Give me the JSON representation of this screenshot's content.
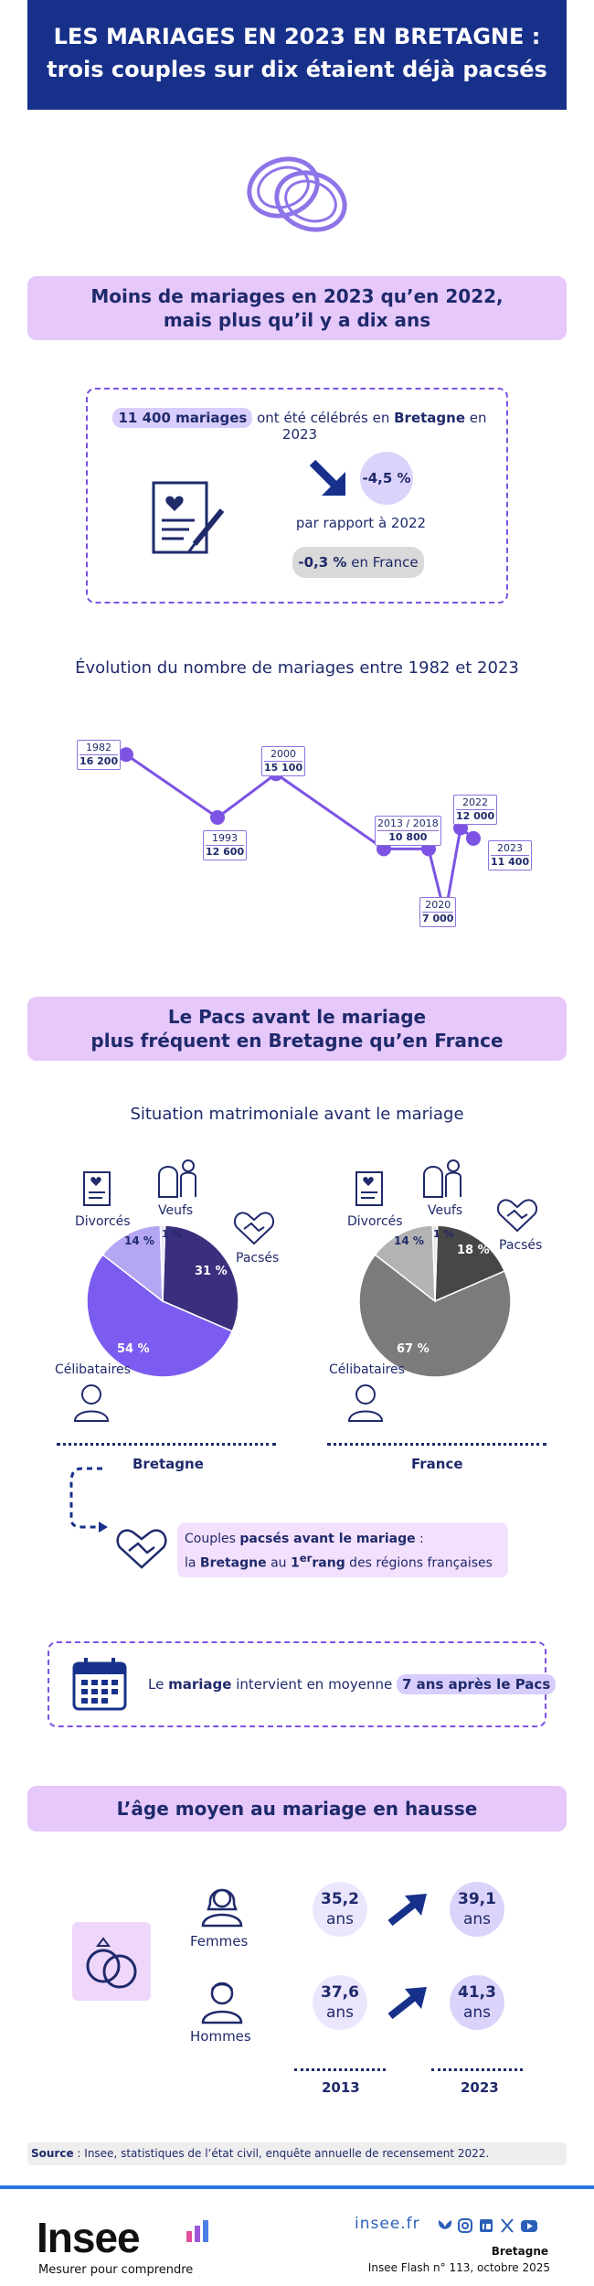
{
  "header": {
    "title_line1": "LES MARIAGES EN 2023 EN BRETAGNE :",
    "title_line2": "trois couples sur dix étaient déjà pacsés"
  },
  "section1": {
    "title_line1": "Moins de mariages en 2023 qu’en 2022,",
    "title_line2": "mais plus qu’il y a dix ans",
    "highlight": "11 400 mariages",
    "text1": " ont été célébrés en ",
    "region": "Bretagne",
    "text2": " en 2023",
    "change": "-4,5 %",
    "change_caption": "par rapport à 2022",
    "france_value": "-0,3 %",
    "france_text": " en France"
  },
  "chart_title": "Évolution du nombre de mariages entre 1982 et 2023",
  "chart_data": {
    "type": "line",
    "title": "Évolution du nombre de mariages entre 1982 et 2023",
    "points": [
      {
        "year_label": "1982",
        "value_label": "16 200",
        "x": 1982,
        "y": 16200
      },
      {
        "year_label": "1993",
        "value_label": "12 600",
        "x": 1993,
        "y": 12600
      },
      {
        "year_label": "2000",
        "value_label": "15 100",
        "x": 2000,
        "y": 15100
      },
      {
        "year_label": "2013 / 2018",
        "value_label": "10 800",
        "x": 2013,
        "y": 10800
      },
      {
        "year_label": "",
        "value_label": "",
        "x": 2018,
        "y": 10800
      },
      {
        "year_label": "2020",
        "value_label": "7 000",
        "x": 2020,
        "y": 7000
      },
      {
        "year_label": "2022",
        "value_label": "12 000",
        "x": 2022,
        "y": 12000
      },
      {
        "year_label": "2023",
        "value_label": "11 400",
        "x": 2023,
        "y": 11400
      }
    ],
    "line_color": "#7c53e3"
  },
  "section2": {
    "title_line1": "Le Pacs avant le mariage",
    "title_line2": "plus fréquent en Bretagne qu’en France",
    "subtitle": "Situation matrimoniale avant le mariage",
    "labels": {
      "divorces": "Divorcés",
      "veufs": "Veufs",
      "pacses": "Pacsés",
      "celibataires": "Célibataires"
    },
    "bretagne": {
      "name": "Bretagne",
      "celibataires": "54 %",
      "divorces": "14 %",
      "veufs": "1 %",
      "pacses": "31 %"
    },
    "france": {
      "name": "France",
      "celibataires": "67 %",
      "divorces": "14 %",
      "veufs": "1 %",
      "pacses": "18 %"
    },
    "pie_values": {
      "bretagne": [
        31,
        54,
        14,
        1
      ],
      "france": [
        18,
        67,
        14,
        1
      ]
    },
    "callout_text1": "Couples ",
    "callout_bold1": "pacsés avant le mariage",
    "callout_text2": " :",
    "callout_line2_pre": "la ",
    "callout_bold2": "Bretagne",
    "callout_text3": " au ",
    "callout_rank": "1",
    "callout_sup": "er",
    "callout_rank_word": "rang",
    "callout_text4": " des régions françaises",
    "pacs_text1": "Le ",
    "pacs_bold": "mariage",
    "pacs_text2": " intervient en moyenne ",
    "pacs_highlight": "7 ans après le Pacs"
  },
  "section3": {
    "title": "L’âge moyen au mariage en hausse",
    "femmes": "Femmes",
    "hommes": "Hommes",
    "f2013": "35,2",
    "f2023": "39,1",
    "h2013": "37,6",
    "h2023": "41,3",
    "unit": "ans",
    "year1": "2013",
    "year2": "2023"
  },
  "footer": {
    "source_label": "Source",
    "source_text": " : Insee, statistiques de l’état civil, enquête annuelle de recensement 2022.",
    "logo": "Insee",
    "tagline": "Mesurer pour comprendre",
    "website": "insee.fr",
    "region": "Bretagne",
    "publication": "Insee Flash n° 113, octobre 2025"
  },
  "colors": {
    "navy": "#17308a",
    "purple": "#7c53e3",
    "section_bg": "#e6c8fb",
    "pie_pacses": "#3a2f7d",
    "pie_celib": "#7c5cf0",
    "pie_divorces": "#b4a6f3"
  }
}
